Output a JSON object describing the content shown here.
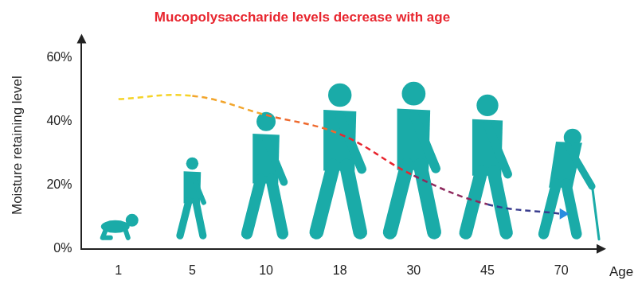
{
  "chart_data": {
    "type": "line",
    "title": "Mucopolysaccharide levels decrease with age",
    "x_label": "Age",
    "y_label": "Moisture retaining level",
    "categories": [
      "1",
      "5",
      "10",
      "18",
      "30",
      "45",
      "70"
    ],
    "values": [
      47,
      48,
      42,
      36,
      23,
      14,
      11
    ],
    "colors": [
      "#f5d327",
      "#f2a52c",
      "#ee6a2e",
      "#e8262f",
      "#8e2a5e",
      "#3a3d8f",
      "#2a8de0"
    ],
    "line_style": "dashed",
    "marker": "none",
    "ylim": [
      0,
      65
    ],
    "yticks": [
      {
        "value": 0,
        "label": "0%"
      },
      {
        "value": 20,
        "label": "20%"
      },
      {
        "value": 40,
        "label": "40%"
      },
      {
        "value": 60,
        "label": "60%"
      }
    ],
    "grid": false
  }
}
